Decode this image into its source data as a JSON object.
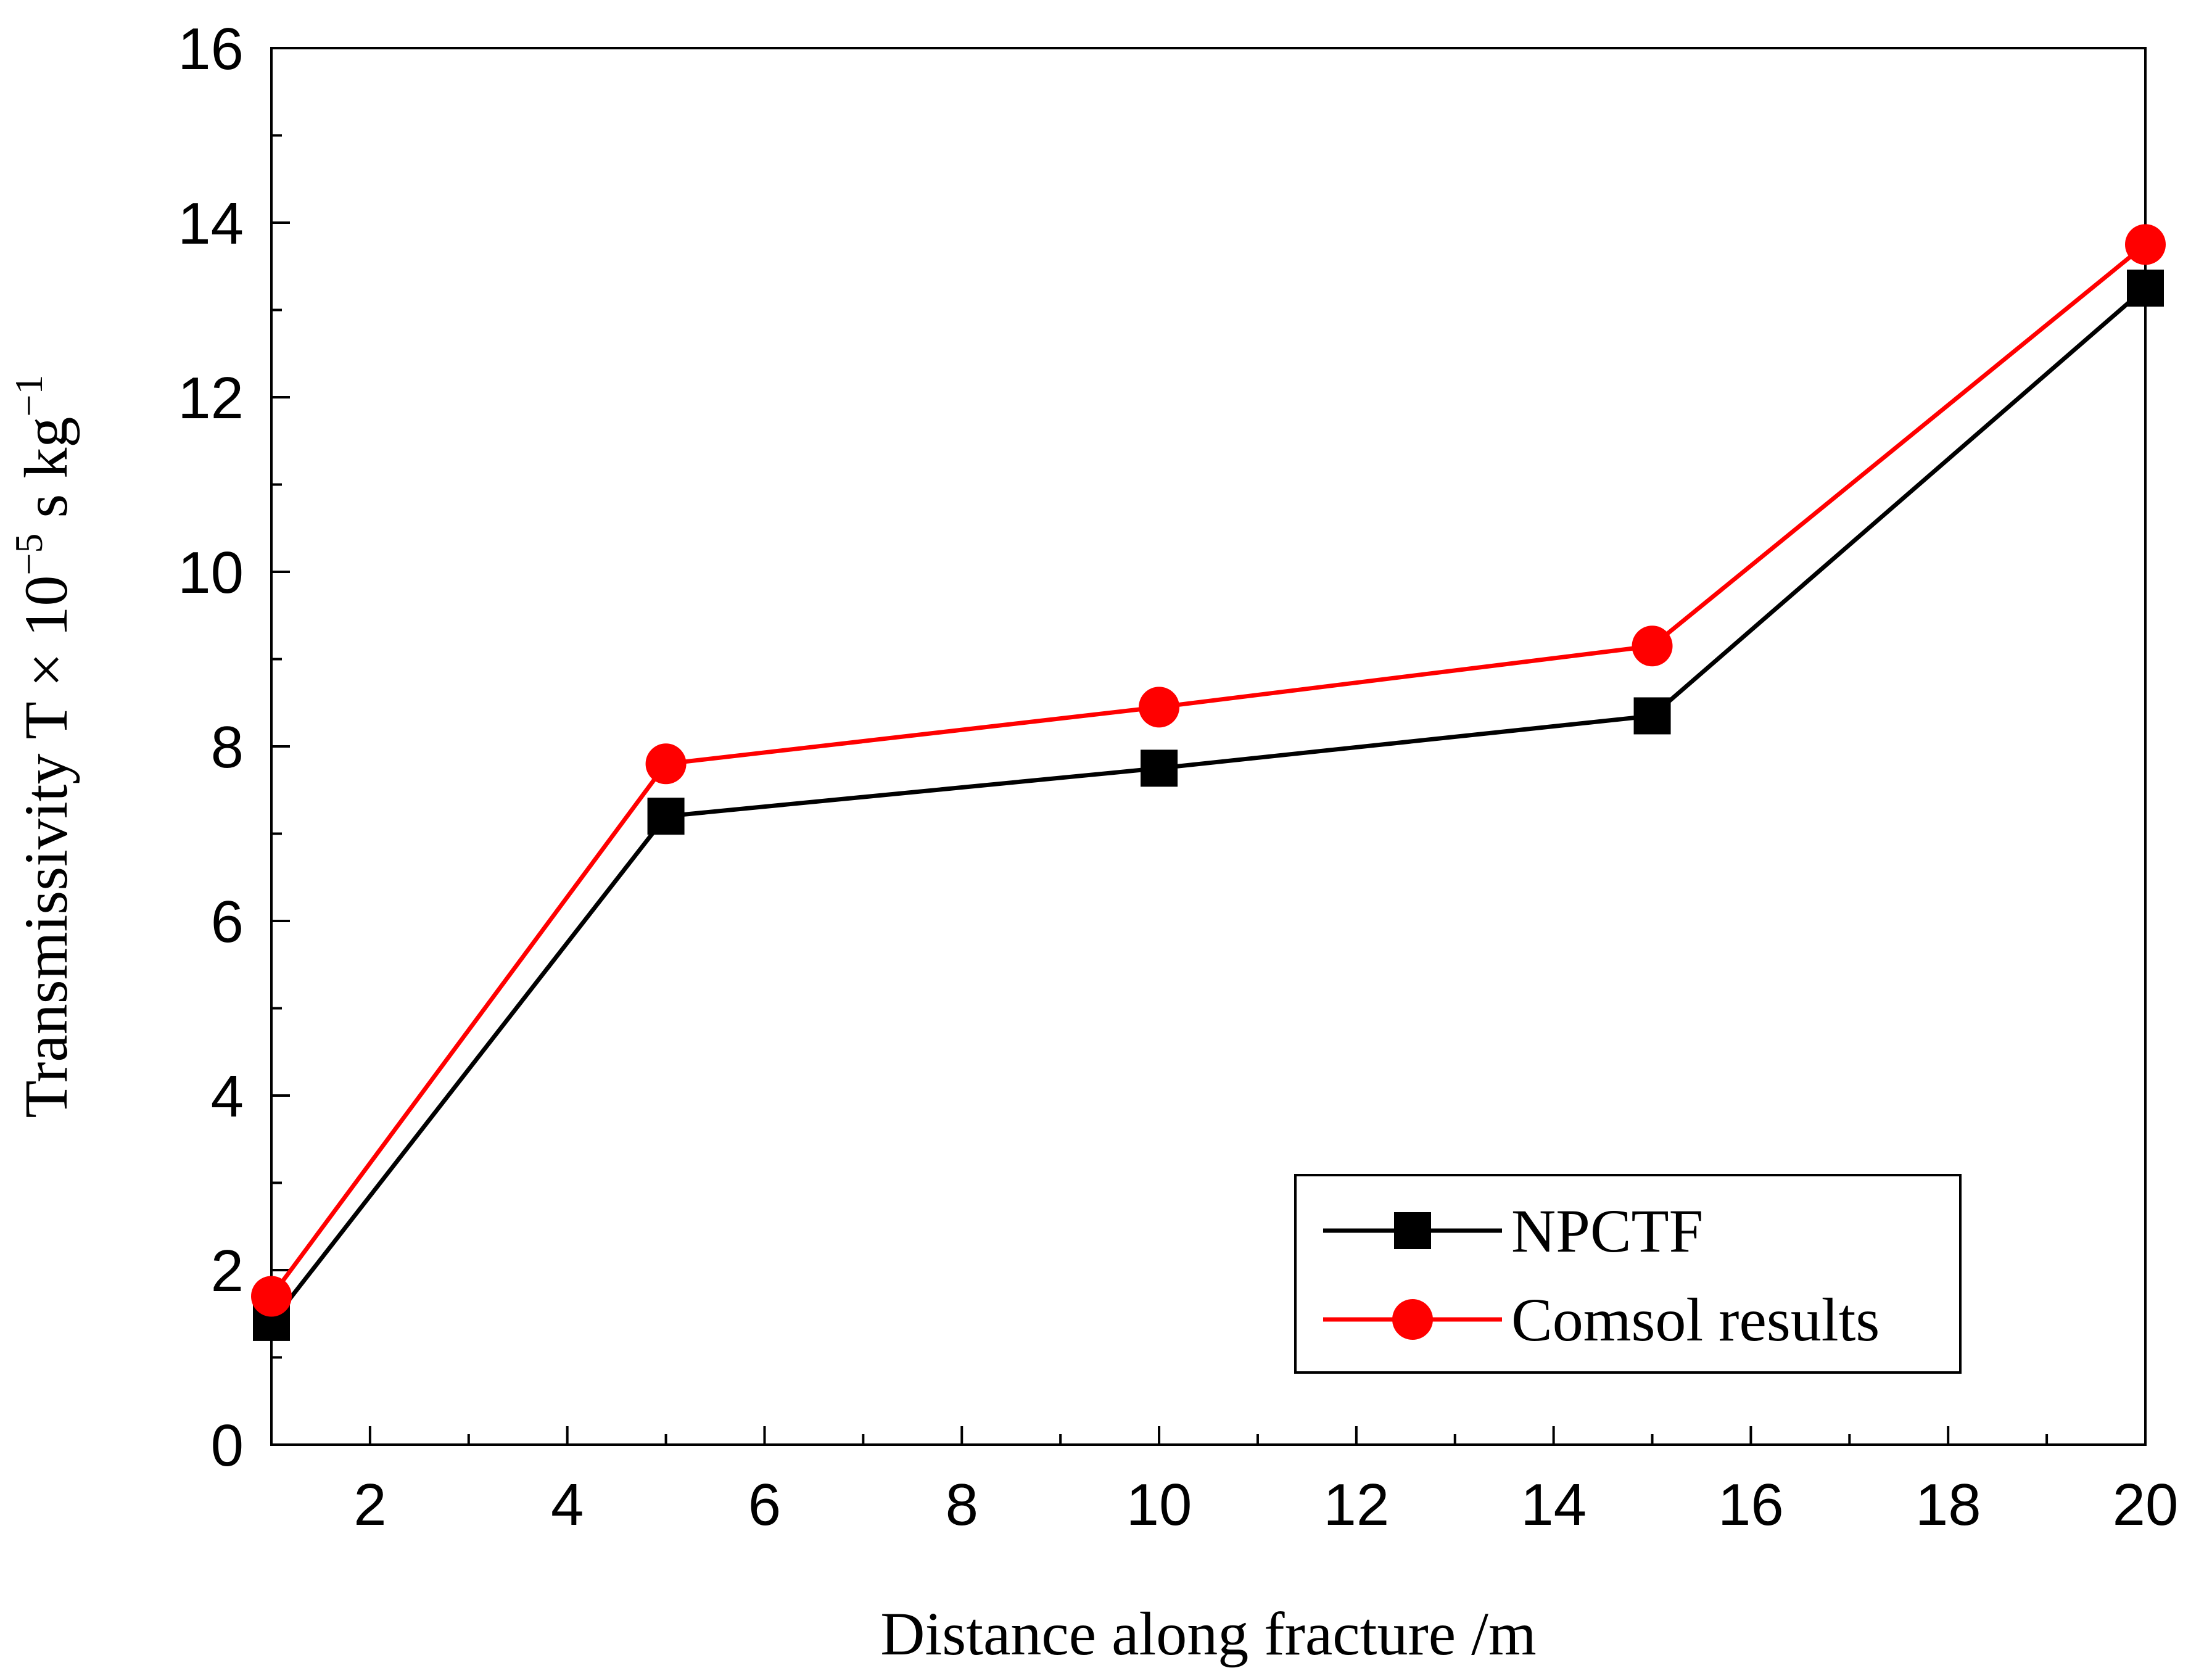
{
  "chart_data": {
    "type": "line",
    "xlabel": "Distance along fracture /m",
    "ylabel": {
      "prefix": "Transmissivity T × 10",
      "exp1": "−5",
      "mid": " s kg",
      "exp2": "−1"
    },
    "xlim": [
      1,
      20
    ],
    "ylim": [
      0,
      16
    ],
    "x_ticks": [
      2,
      4,
      6,
      8,
      10,
      12,
      14,
      16,
      18,
      20
    ],
    "x_tick_labels": [
      "2",
      "4",
      "6",
      "8",
      "10",
      "12",
      "14",
      "16",
      "18",
      "20"
    ],
    "y_ticks": [
      0,
      2,
      4,
      6,
      8,
      10,
      12,
      14,
      16
    ],
    "y_tick_labels": [
      "0",
      "2",
      "4",
      "6",
      "8",
      "10",
      "12",
      "14",
      "16"
    ],
    "x": [
      1,
      5,
      10,
      15,
      20
    ],
    "series": [
      {
        "name": "NPCTF",
        "color": "#000000",
        "marker": "square",
        "values": [
          1.4,
          7.2,
          7.75,
          8.35,
          13.25
        ]
      },
      {
        "name": "Comsol results",
        "color": "#ff0000",
        "marker": "circle",
        "values": [
          1.7,
          7.8,
          8.45,
          9.15,
          13.75
        ]
      }
    ],
    "legend_position": "lower-right",
    "grid": false
  }
}
